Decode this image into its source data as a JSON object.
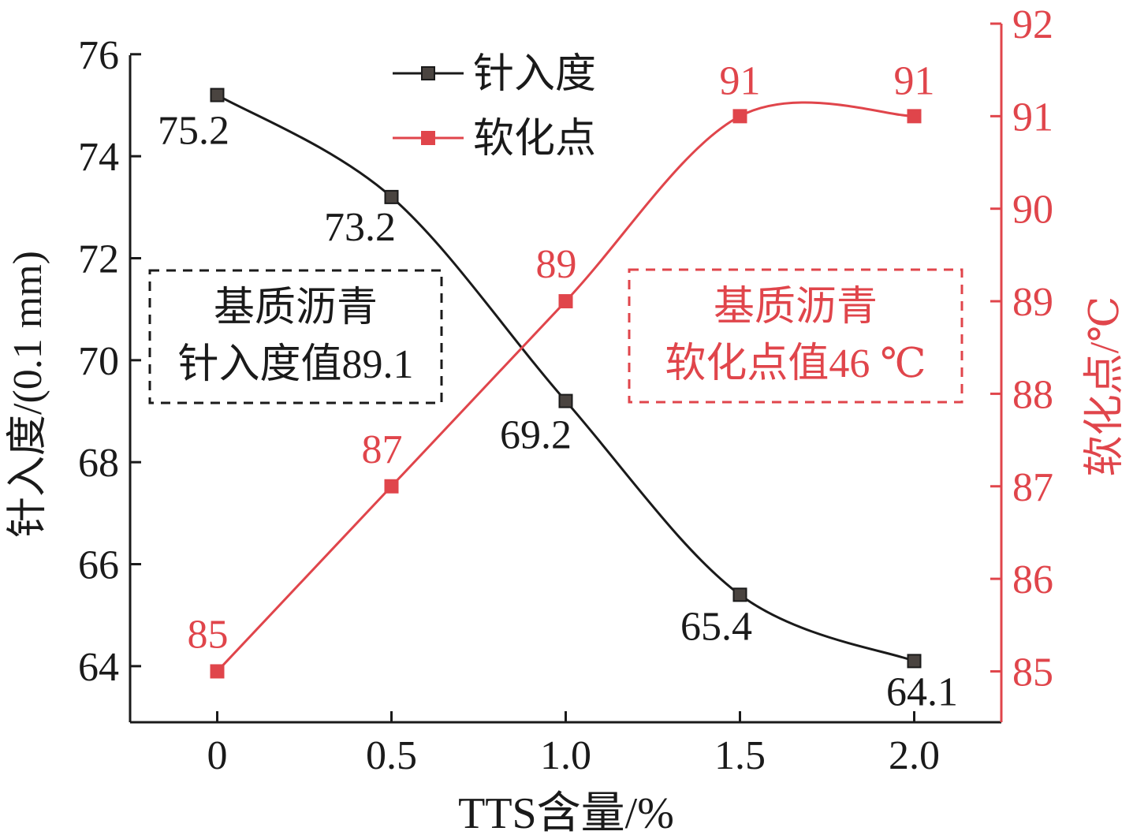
{
  "chart_data": {
    "type": "line",
    "xlabel": "TTS含量/%",
    "categories": [
      "0",
      "0.5",
      "1.0",
      "1.5",
      "2.0"
    ],
    "x": [
      0,
      0.5,
      1.0,
      1.5,
      2.0
    ],
    "xlim": [
      -0.25,
      2.25
    ],
    "y_left": {
      "label": "针入度/(0.1 mm)",
      "ylim": [
        62.9,
        76.6
      ],
      "ticks": [
        64,
        66,
        68,
        70,
        72,
        74,
        76
      ],
      "color": "#1a1a1a"
    },
    "y_right": {
      "label": "软化点/℃",
      "ylim": [
        84.45,
        92.0
      ],
      "ticks": [
        85,
        86,
        87,
        88,
        89,
        90,
        91,
        92
      ],
      "color": "#e0454b"
    },
    "series": [
      {
        "name": "针入度",
        "axis": "left",
        "color": "#1a1a1a",
        "marker_fill": "#4a4440",
        "smooth": true,
        "values": [
          75.2,
          73.2,
          69.2,
          65.4,
          64.1
        ],
        "labels": [
          "75.2",
          "73.2",
          "69.2",
          "65.4",
          "64.1"
        ]
      },
      {
        "name": "软化点",
        "axis": "right",
        "color": "#e0454b",
        "marker_fill": "#e0454b",
        "smooth": true,
        "values": [
          85,
          87,
          89,
          91,
          91
        ],
        "labels": [
          "85",
          "87",
          "89",
          "91",
          "91"
        ]
      }
    ],
    "legend": {
      "position": "top-center"
    },
    "annotations": [
      {
        "lines": [
          "基质沥青",
          "针入度值89.1"
        ],
        "color": "#1a1a1a",
        "style": "dashed-box",
        "position": "left"
      },
      {
        "lines": [
          "基质沥青",
          "软化点值46 ℃"
        ],
        "color": "#e0454b",
        "style": "dashed-box",
        "position": "right"
      }
    ],
    "grid": false
  }
}
